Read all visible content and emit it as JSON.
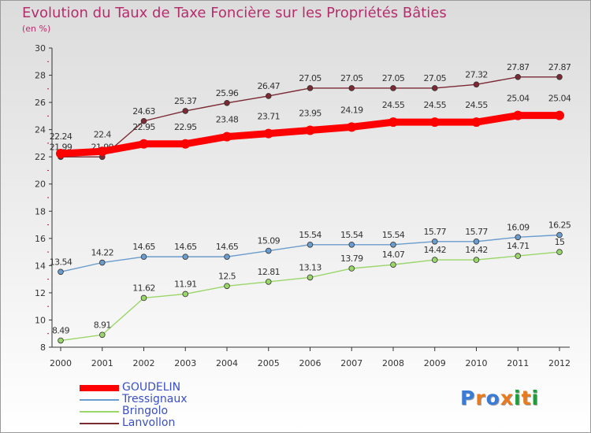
{
  "title": "Evolution du Taux de Taxe Foncière sur les Propriétés Bâties",
  "unit_label": "(en %)",
  "logo_text": "Proxiti",
  "chart_data": {
    "type": "line",
    "title": "Evolution du Taux de Taxe Foncière sur les Propriétés Bâties",
    "ylabel": "(en %)",
    "xlabel": "",
    "x": [
      "2000",
      "2001",
      "2002",
      "2003",
      "2004",
      "2005",
      "2006",
      "2007",
      "2008",
      "2009",
      "2010",
      "2011",
      "2012"
    ],
    "ylim": [
      8,
      30
    ],
    "yticks": [
      8,
      10,
      12,
      14,
      16,
      18,
      20,
      22,
      24,
      26,
      28,
      30
    ],
    "grid": false,
    "legend_position": "bottom-left",
    "series": [
      {
        "name": "GOUDELIN",
        "color": "#ff0000",
        "values": [
          22.24,
          22.4,
          22.95,
          22.95,
          23.48,
          23.71,
          23.95,
          24.19,
          24.55,
          24.55,
          24.55,
          25.04,
          25.04
        ],
        "labels": [
          "22.24",
          "22.4",
          "22.95",
          "22.95",
          "23.48",
          "23.71",
          "23.95",
          "24.19",
          "24.55",
          "24.55",
          "24.55",
          "25.04",
          "25.04"
        ]
      },
      {
        "name": "Tressignaux",
        "color": "#6a9ccd",
        "values": [
          13.54,
          14.22,
          14.65,
          14.65,
          14.65,
          15.09,
          15.54,
          15.54,
          15.54,
          15.77,
          15.77,
          16.09,
          16.25
        ],
        "labels": [
          "13.54",
          "14.22",
          "14.65",
          "14.65",
          "14.65",
          "15.09",
          "15.54",
          "15.54",
          "15.54",
          "15.77",
          "15.77",
          "16.09",
          "16.25"
        ]
      },
      {
        "name": "Bringolo",
        "color": "#9ad66a",
        "values": [
          8.49,
          8.91,
          11.62,
          11.91,
          12.5,
          12.81,
          13.13,
          13.79,
          14.07,
          14.42,
          14.42,
          14.71,
          15
        ],
        "labels": [
          "8.49",
          "8.91",
          "11.62",
          "11.91",
          "12.5",
          "12.81",
          "13.13",
          "13.79",
          "14.07",
          "14.42",
          "14.42",
          "14.71",
          "15"
        ]
      },
      {
        "name": "Lanvollon",
        "color": "#7b2a33",
        "values": [
          21.99,
          21.99,
          24.63,
          25.37,
          25.96,
          26.47,
          27.05,
          27.05,
          27.05,
          27.05,
          27.32,
          27.87,
          27.87
        ],
        "labels": [
          "21.99",
          "21.99",
          "24.63",
          "25.37",
          "25.96",
          "26.47",
          "27.05",
          "27.05",
          "27.05",
          "27.05",
          "27.32",
          "27.87",
          "27.87"
        ]
      }
    ]
  }
}
